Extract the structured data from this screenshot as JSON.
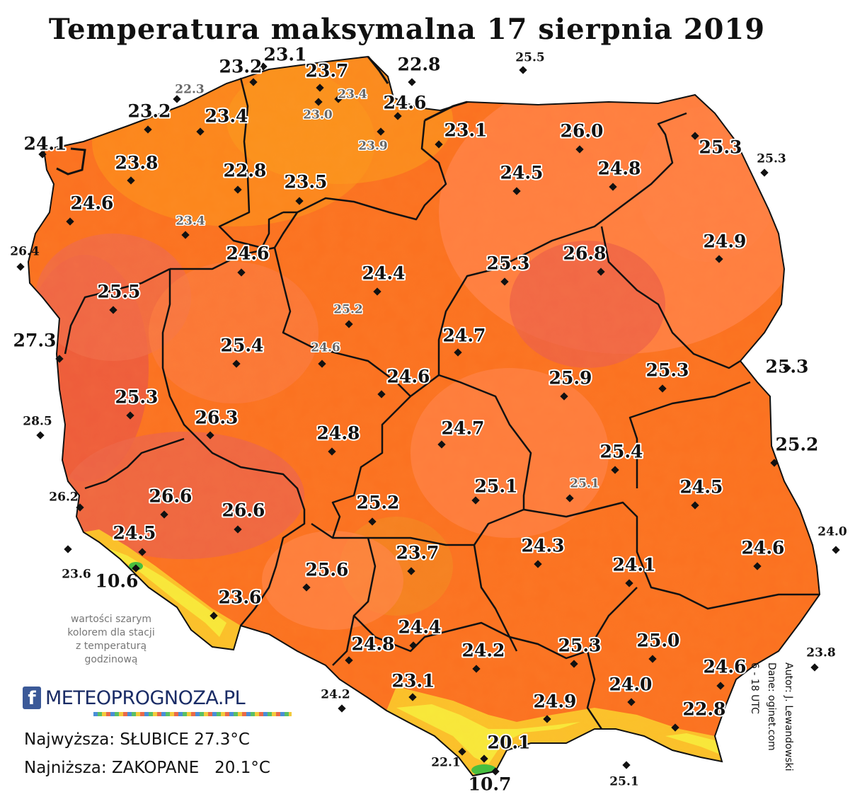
{
  "title": "Temperatura maksymalna 17 sierpnia 2019",
  "note": {
    "lines": [
      "wartości szarym",
      "kolorem dla stacji",
      "z temperaturą",
      "godzinową"
    ]
  },
  "logo": {
    "icon": "facebook-icon",
    "text": "METEOPROGNOZA.PL"
  },
  "extremes": {
    "max": "Najwyższa: SŁUBICE 27.3°C",
    "min": "Najniższa: ZAKOPANE   20.1°C"
  },
  "credits": {
    "author": "Autor: J. Lewandowski",
    "source": "Dane: oginet.com",
    "period": "6 - 18 UTC"
  },
  "colors": {
    "hot": "#ec5a3e",
    "warm": "#ff8040",
    "medium": "#fb7120",
    "cool": "#fb961c",
    "mountain_yellow": "#f8ea3a",
    "mountain_green": "#3fbf3f",
    "border": "#111111"
  },
  "stations": [
    {
      "value": "23.1",
      "style": "big"
    },
    {
      "value": "23.2",
      "style": "big"
    },
    {
      "value": "23.7",
      "style": "big"
    },
    {
      "value": "22.8",
      "style": "big"
    },
    {
      "value": "25.5",
      "style": "out"
    },
    {
      "value": "22.3",
      "style": "gray"
    },
    {
      "value": "23.4",
      "style": "gray"
    },
    {
      "value": "23.0",
      "style": "gray"
    },
    {
      "value": "24.6",
      "style": "big"
    },
    {
      "value": "23.2",
      "style": "big"
    },
    {
      "value": "23.4",
      "style": "big"
    },
    {
      "value": "24.1",
      "style": "big"
    },
    {
      "value": "23.9",
      "style": "gray"
    },
    {
      "value": "23.1",
      "style": "big"
    },
    {
      "value": "26.0",
      "style": "big"
    },
    {
      "value": "25.3",
      "style": "big"
    },
    {
      "value": "25.3",
      "style": "out"
    },
    {
      "value": "23.8",
      "style": "big"
    },
    {
      "value": "22.8",
      "style": "big"
    },
    {
      "value": "23.5",
      "style": "big"
    },
    {
      "value": "24.5",
      "style": "big"
    },
    {
      "value": "24.8",
      "style": "big"
    },
    {
      "value": "24.6",
      "style": "big"
    },
    {
      "value": "23.4",
      "style": "gray"
    },
    {
      "value": "24.9",
      "style": "big"
    },
    {
      "value": "26.4",
      "style": "out"
    },
    {
      "value": "24.6",
      "style": "big"
    },
    {
      "value": "24.4",
      "style": "big"
    },
    {
      "value": "25.3",
      "style": "big"
    },
    {
      "value": "26.8",
      "style": "big"
    },
    {
      "value": "25.5",
      "style": "big"
    },
    {
      "value": "25.2",
      "style": "gray"
    },
    {
      "value": "27.3",
      "style": "out-big"
    },
    {
      "value": "24.7",
      "style": "big"
    },
    {
      "value": "25.4",
      "style": "big"
    },
    {
      "value": "24.6",
      "style": "gray"
    },
    {
      "value": "24.6",
      "style": "big"
    },
    {
      "value": "25.9",
      "style": "big"
    },
    {
      "value": "25.3",
      "style": "big"
    },
    {
      "value": "25.3",
      "style": "out-big"
    },
    {
      "value": "25.3",
      "style": "big"
    },
    {
      "value": "26.3",
      "style": "big"
    },
    {
      "value": "28.5",
      "style": "out"
    },
    {
      "value": "24.8",
      "style": "big"
    },
    {
      "value": "24.7",
      "style": "big"
    },
    {
      "value": "25.4",
      "style": "big"
    },
    {
      "value": "25.2",
      "style": "out-big"
    },
    {
      "value": "26.6",
      "style": "big"
    },
    {
      "value": "26.2",
      "style": "out"
    },
    {
      "value": "25.1",
      "style": "big"
    },
    {
      "value": "25.1",
      "style": "gray"
    },
    {
      "value": "24.5",
      "style": "big"
    },
    {
      "value": "26.6",
      "style": "big"
    },
    {
      "value": "25.2",
      "style": "big"
    },
    {
      "value": "24.5",
      "style": "big"
    },
    {
      "value": "24.0",
      "style": "out"
    },
    {
      "value": "23.7",
      "style": "big"
    },
    {
      "value": "24.3",
      "style": "big"
    },
    {
      "value": "24.6",
      "style": "big"
    },
    {
      "value": "23.6",
      "style": "out"
    },
    {
      "value": "10.6",
      "style": "out-big"
    },
    {
      "value": "25.6",
      "style": "big"
    },
    {
      "value": "24.1",
      "style": "big"
    },
    {
      "value": "23.6",
      "style": "big"
    },
    {
      "value": "24.4",
      "style": "big"
    },
    {
      "value": "25.0",
      "style": "big"
    },
    {
      "value": "24.8",
      "style": "big"
    },
    {
      "value": "24.2",
      "style": "big"
    },
    {
      "value": "25.3",
      "style": "big"
    },
    {
      "value": "23.8",
      "style": "out"
    },
    {
      "value": "24.6",
      "style": "big"
    },
    {
      "value": "24.2",
      "style": "out"
    },
    {
      "value": "23.1",
      "style": "big"
    },
    {
      "value": "24.0",
      "style": "big"
    },
    {
      "value": "24.9",
      "style": "big"
    },
    {
      "value": "22.8",
      "style": "big"
    },
    {
      "value": "20.1",
      "style": "big"
    },
    {
      "value": "22.1",
      "style": "out"
    },
    {
      "value": "25.1",
      "style": "out"
    },
    {
      "value": "10.7",
      "style": "out-big"
    }
  ]
}
